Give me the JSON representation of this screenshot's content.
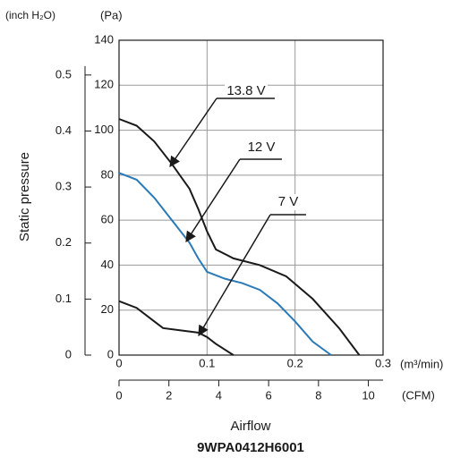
{
  "chart_data": {
    "type": "line",
    "title": "9WPA0412H6001",
    "xlabel": "Airflow",
    "ylabel": "Static pressure",
    "x_unit": "(m³/min)",
    "x2_unit": "(CFM)",
    "y_unit": "(Pa)",
    "y2_unit": "(inch H₂O)",
    "xlim": [
      0,
      0.3
    ],
    "xticks": [
      0,
      0.1,
      0.2,
      0.3
    ],
    "x2lim": [
      0,
      10.59
    ],
    "x2ticks": [
      0,
      2,
      4,
      6,
      8,
      10
    ],
    "ylim": [
      0,
      140
    ],
    "yticks": [
      0,
      20,
      40,
      60,
      80,
      100,
      120,
      140
    ],
    "y2lim": [
      0,
      0.562
    ],
    "y2ticks": [
      0,
      0.1,
      0.2,
      0.3,
      0.4,
      0.5
    ],
    "grid": true,
    "series": [
      {
        "name": "13.8 V",
        "color": "#1a1a1a",
        "x": [
          0,
          0.02,
          0.04,
          0.06,
          0.08,
          0.09,
          0.1,
          0.11,
          0.13,
          0.16,
          0.19,
          0.22,
          0.25,
          0.273
        ],
        "values": [
          105,
          102,
          95,
          85,
          74,
          65,
          55,
          47,
          43,
          40,
          35,
          25,
          12,
          0
        ]
      },
      {
        "name": "12 V",
        "color": "#2a7ab8",
        "x": [
          0,
          0.02,
          0.04,
          0.06,
          0.08,
          0.09,
          0.1,
          0.12,
          0.14,
          0.16,
          0.18,
          0.2,
          0.22,
          0.241
        ],
        "values": [
          81,
          78,
          70,
          60,
          50,
          43,
          37,
          34,
          32,
          29,
          23,
          15,
          6,
          0
        ]
      },
      {
        "name": "7 V",
        "color": "#1a1a1a",
        "x": [
          0,
          0.02,
          0.04,
          0.05,
          0.07,
          0.09,
          0.1,
          0.11,
          0.13
        ],
        "values": [
          24,
          21,
          15,
          12,
          11,
          10,
          8,
          5,
          0
        ]
      }
    ]
  }
}
